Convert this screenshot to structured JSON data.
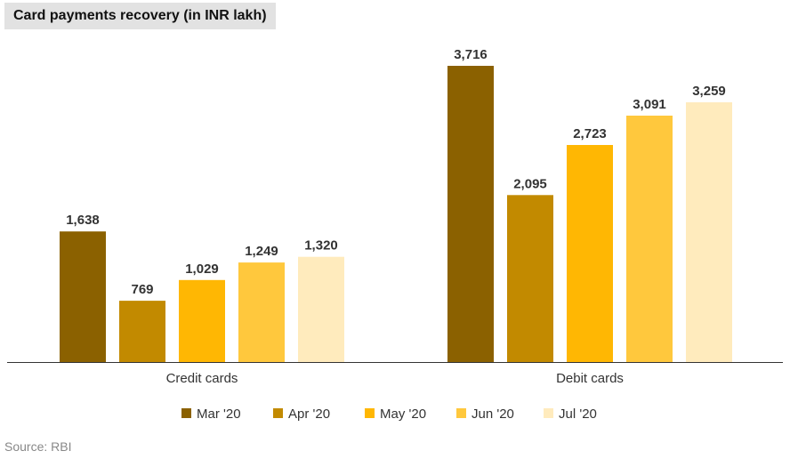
{
  "chart_data": {
    "type": "bar",
    "title": "Card payments recovery (in INR lakh)",
    "categories": [
      "Credit cards",
      "Debit cards"
    ],
    "series": [
      {
        "name": "Mar '20",
        "values": [
          1638,
          3716
        ],
        "labels": [
          "1,638",
          "3,716"
        ],
        "color": "#8b6100"
      },
      {
        "name": "Apr '20",
        "values": [
          769,
          2095
        ],
        "labels": [
          "769",
          "2,095"
        ],
        "color": "#c28a00"
      },
      {
        "name": "May '20",
        "values": [
          1029,
          2723
        ],
        "labels": [
          "1,029",
          "2,723"
        ],
        "color": "#ffb703"
      },
      {
        "name": "Jun '20",
        "values": [
          1249,
          3091
        ],
        "labels": [
          "1,249",
          "3,091"
        ],
        "color": "#ffc83d"
      },
      {
        "name": "Jul '20",
        "values": [
          1320,
          3259
        ],
        "labels": [
          "1,320",
          "3,259"
        ],
        "color": "#ffebbd"
      }
    ],
    "ylim": [
      0,
      3716
    ],
    "xlabel": "",
    "ylabel": "",
    "grid": false,
    "legend_position": "bottom"
  },
  "source": "Source: RBI"
}
